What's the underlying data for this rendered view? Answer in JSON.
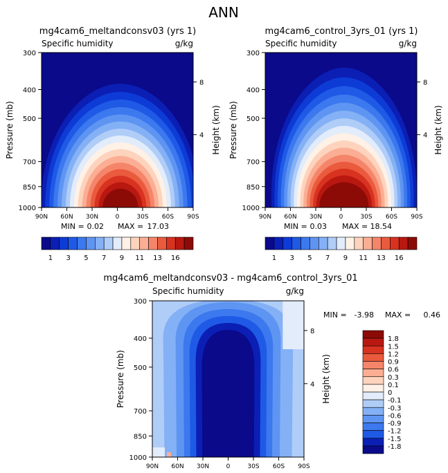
{
  "page_title": "ANN",
  "panels": [
    {
      "title": "mg4cam6_meltandconsv03 (yrs 1)",
      "variable": "Specific humidity",
      "units": "g/kg",
      "min_label": "MIN =",
      "min_value": "0.02",
      "max_label": "MAX =",
      "max_value": "17.03"
    },
    {
      "title": "mg4cam6_control_3yrs_01 (yrs 1)",
      "variable": "Specific humidity",
      "units": "g/kg",
      "min_label": "MIN =",
      "min_value": "0.03",
      "max_label": "MAX =",
      "max_value": "18.54"
    },
    {
      "title": "mg4cam6_meltandconsv03 - mg4cam6_control_3yrs_01",
      "variable": "Specific humidity",
      "units": "g/kg",
      "min_label": "MIN =",
      "min_value": "-3.98",
      "max_label": "MAX =",
      "max_value": "0.46"
    }
  ],
  "axes": {
    "ylabel": "Pressure (mb)",
    "y2label": "Height (km)",
    "y_ticks": [
      "300",
      "400",
      "500",
      "700",
      "850",
      "1000"
    ],
    "y2_ticks": [
      "8",
      "4"
    ],
    "x_ticks": [
      "90N",
      "60N",
      "30N",
      "0",
      "30S",
      "60S",
      "90S"
    ]
  },
  "colorbars": {
    "abs_labels": [
      "1",
      "3",
      "5",
      "7",
      "9",
      "11",
      "13",
      "16"
    ],
    "abs_colors": [
      "#0a0a8a",
      "#0b1fb5",
      "#0d3bd6",
      "#1f5ae6",
      "#3c78ee",
      "#5e95f2",
      "#84b0f5",
      "#b0cdf8",
      "#e2ecfb",
      "#fff1e6",
      "#fdd3bd",
      "#fbae93",
      "#f5856a",
      "#ea5a3d",
      "#d83220",
      "#b81810",
      "#8c0b06"
    ],
    "diff_labels": [
      "1.8",
      "1.5",
      "1.2",
      "0.9",
      "0.6",
      "0.3",
      "0.1",
      "0",
      "-0.1",
      "-0.3",
      "-0.6",
      "-0.9",
      "-1.2",
      "-1.5",
      "-1.8"
    ],
    "diff_colors": [
      "#8c0b06",
      "#b81810",
      "#d83220",
      "#ea5a3d",
      "#f5856a",
      "#fbae93",
      "#fdd3bd",
      "#fff1e6",
      "#e2ecfb",
      "#b0cdf8",
      "#84b0f5",
      "#5e95f2",
      "#3c78ee",
      "#1f5ae6",
      "#0b1fb5",
      "#0a0a8a"
    ]
  },
  "chart_data": [
    {
      "type": "heatmap",
      "subtype": "latitude-pressure contour",
      "title": "mg4cam6_meltandconsv03 (yrs 1)",
      "variable": "Specific humidity",
      "units": "g/kg",
      "x_ticks": [
        "90N",
        "60N",
        "30N",
        "0",
        "30S",
        "60S",
        "90S"
      ],
      "y_ticks_mb": [
        300,
        400,
        500,
        700,
        850,
        1000
      ],
      "y_range_mb": [
        300,
        1000
      ],
      "contour_levels": [
        1,
        2,
        3,
        4,
        5,
        6,
        7,
        8,
        9,
        10,
        11,
        12,
        13,
        14,
        15,
        16
      ],
      "min": 0.02,
      "max": 17.03
    },
    {
      "type": "heatmap",
      "subtype": "latitude-pressure contour",
      "title": "mg4cam6_control_3yrs_01 (yrs 1)",
      "variable": "Specific humidity",
      "units": "g/kg",
      "x_ticks": [
        "90N",
        "60N",
        "30N",
        "0",
        "30S",
        "60S",
        "90S"
      ],
      "y_ticks_mb": [
        300,
        400,
        500,
        700,
        850,
        1000
      ],
      "y_range_mb": [
        300,
        1000
      ],
      "contour_levels": [
        1,
        2,
        3,
        4,
        5,
        6,
        7,
        8,
        9,
        10,
        11,
        12,
        13,
        14,
        15,
        16
      ],
      "min": 0.03,
      "max": 18.54
    },
    {
      "type": "heatmap",
      "subtype": "latitude-pressure contour difference",
      "title": "mg4cam6_meltandconsv03 - mg4cam6_control_3yrs_01",
      "variable": "Specific humidity",
      "units": "g/kg",
      "x_ticks": [
        "90N",
        "60N",
        "30N",
        "0",
        "30S",
        "60S",
        "90S"
      ],
      "y_ticks_mb": [
        300,
        400,
        500,
        700,
        850,
        1000
      ],
      "y_range_mb": [
        300,
        1000
      ],
      "contour_levels": [
        -1.8,
        -1.5,
        -1.2,
        -0.9,
        -0.6,
        -0.3,
        -0.1,
        0,
        0.1,
        0.3,
        0.6,
        0.9,
        1.2,
        1.5,
        1.8
      ],
      "min": -3.98,
      "max": 0.46
    }
  ]
}
